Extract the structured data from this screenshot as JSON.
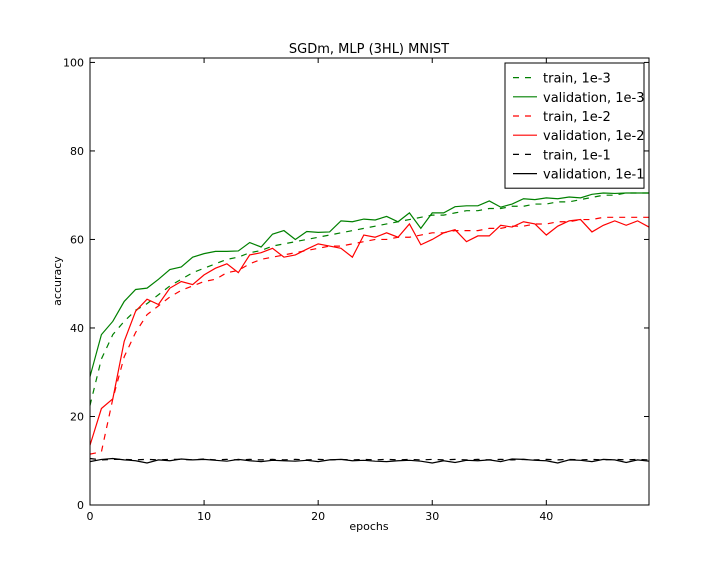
{
  "chart_data": {
    "type": "line",
    "title": "SGDm, MLP (3HL) MNIST",
    "xlabel": "epochs",
    "ylabel": "accuracy",
    "xlim": [
      0,
      49
    ],
    "ylim": [
      0,
      101
    ],
    "x_ticks": [
      0,
      10,
      20,
      30,
      40
    ],
    "y_ticks": [
      0,
      20,
      40,
      60,
      80,
      100
    ],
    "grid": false,
    "legend_position": "top-right",
    "x": [
      0,
      1,
      2,
      3,
      4,
      5,
      6,
      7,
      8,
      9,
      10,
      11,
      12,
      13,
      14,
      15,
      16,
      17,
      18,
      19,
      20,
      21,
      22,
      23,
      24,
      25,
      26,
      27,
      28,
      29,
      30,
      31,
      32,
      33,
      34,
      35,
      36,
      37,
      38,
      39,
      40,
      41,
      42,
      43,
      44,
      45,
      46,
      47,
      48,
      49
    ],
    "series": [
      {
        "name": "train, 1e-3",
        "color": "#008000",
        "dash": "dashed",
        "values": [
          22.5,
          33.0,
          38.5,
          41.5,
          44.0,
          45.5,
          47.5,
          49.5,
          51.0,
          52.5,
          53.5,
          54.5,
          55.5,
          56.0,
          57.0,
          57.5,
          58.5,
          59.0,
          59.5,
          60.0,
          60.5,
          61.0,
          61.5,
          62.0,
          62.5,
          63.0,
          63.5,
          64.0,
          64.5,
          65.0,
          65.5,
          65.5,
          66.0,
          66.5,
          66.5,
          67.0,
          67.0,
          67.5,
          67.5,
          68.0,
          68.0,
          68.5,
          68.5,
          69.0,
          69.5,
          70.0,
          70.0,
          70.5,
          70.5,
          70.5
        ]
      },
      {
        "name": "validation, 1e-3",
        "color": "#008000",
        "dash": "solid",
        "values": [
          29.0,
          38.5,
          41.5,
          46.0,
          48.7,
          49.0,
          51.0,
          53.2,
          53.8,
          56.0,
          56.8,
          57.3,
          57.3,
          57.4,
          59.3,
          58.3,
          61.2,
          62.0,
          60.0,
          61.8,
          61.6,
          61.7,
          64.2,
          64.0,
          64.6,
          64.4,
          65.2,
          64.0,
          66.0,
          62.5,
          66.0,
          66.0,
          67.4,
          67.6,
          67.6,
          68.7,
          67.3,
          68.0,
          69.2,
          69.0,
          69.4,
          69.2,
          69.6,
          69.4,
          70.2,
          70.5,
          70.4,
          70.5,
          70.5,
          70.5
        ]
      },
      {
        "name": "train, 1e-2",
        "color": "#ff0000",
        "dash": "dashed",
        "values": [
          11.5,
          12.0,
          24.0,
          33.5,
          39.0,
          43.0,
          45.0,
          47.0,
          48.5,
          49.5,
          50.5,
          51.0,
          52.5,
          53.0,
          54.5,
          55.5,
          56.0,
          56.5,
          57.0,
          57.5,
          58.0,
          58.5,
          58.5,
          59.0,
          59.5,
          60.0,
          60.0,
          60.5,
          60.5,
          61.0,
          61.5,
          61.5,
          62.0,
          62.0,
          62.0,
          62.5,
          62.5,
          63.0,
          63.0,
          63.5,
          63.5,
          64.0,
          64.0,
          64.5,
          64.5,
          65.0,
          65.0,
          65.0,
          65.0,
          65.0
        ]
      },
      {
        "name": "validation, 1e-2",
        "color": "#ff0000",
        "dash": "solid",
        "values": [
          13.5,
          21.8,
          24.0,
          37.0,
          43.8,
          46.5,
          45.3,
          49.0,
          50.5,
          49.8,
          52.0,
          53.5,
          54.5,
          52.5,
          56.5,
          57.0,
          58.0,
          56.0,
          56.5,
          57.8,
          59.0,
          58.5,
          58.0,
          56.0,
          61.0,
          60.5,
          61.5,
          60.5,
          63.5,
          58.8,
          60.0,
          61.5,
          62.2,
          59.5,
          60.8,
          60.8,
          63.2,
          62.8,
          64.0,
          63.5,
          61.0,
          63.0,
          64.2,
          64.5,
          61.7,
          63.2,
          64.2,
          63.2,
          64.2,
          62.8
        ]
      },
      {
        "name": "train, 1e-1",
        "color": "#000000",
        "dash": "dashed",
        "values": [
          10.5,
          10.2,
          10.3,
          10.3,
          10.2,
          10.3,
          10.2,
          10.3,
          10.3,
          10.2,
          10.4,
          10.2,
          10.3,
          10.2,
          10.3,
          10.2,
          10.3,
          10.2,
          10.3,
          10.2,
          10.3,
          10.2,
          10.3,
          10.2,
          10.3,
          10.2,
          10.3,
          10.2,
          10.3,
          10.2,
          10.3,
          10.2,
          10.3,
          10.2,
          10.3,
          10.2,
          10.3,
          10.2,
          10.3,
          10.2,
          10.3,
          10.2,
          10.3,
          10.2,
          10.3,
          10.2,
          10.3,
          10.2,
          10.3,
          10.2
        ]
      },
      {
        "name": "validation, 1e-1",
        "color": "#000000",
        "dash": "solid",
        "values": [
          9.8,
          10.3,
          10.5,
          10.2,
          10.0,
          9.5,
          10.2,
          10.0,
          10.4,
          10.2,
          10.3,
          10.1,
          9.9,
          10.3,
          10.0,
          9.8,
          10.1,
          10.0,
          9.9,
          10.1,
          9.8,
          10.2,
          10.3,
          10.0,
          10.1,
          9.9,
          9.8,
          10.0,
          10.1,
          9.9,
          9.5,
          10.0,
          9.6,
          10.1,
          10.0,
          10.2,
          9.8,
          10.4,
          10.3,
          10.1,
          10.0,
          9.5,
          10.2,
          10.1,
          9.8,
          10.3,
          10.2,
          9.6,
          10.2,
          9.9
        ]
      }
    ]
  }
}
